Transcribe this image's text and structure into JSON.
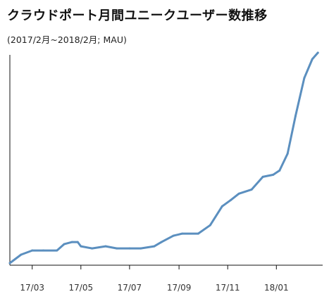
{
  "title": "クラウドポート月間ユニークユーザー数推移",
  "subtitle": "(2017/2月~2018/2月; MAU)",
  "chart_data": {
    "type": "line",
    "title": "クラウドポート月間ユニークユーザー数推移",
    "subtitle": "(2017/2月~2018/2月; MAU)",
    "xlabel": "",
    "ylabel": "",
    "x_axis_type": "date",
    "xlim": [
      "2017-02-01",
      "2018-02-28"
    ],
    "y_axis_labels": "none",
    "ylim": [
      0,
      100
    ],
    "grid": false,
    "legend": "none",
    "color": "#5b8fbf",
    "tick_labels": [
      "17/03",
      "17/05",
      "17/07",
      "17/09",
      "17/11",
      "18/01"
    ],
    "tick_dates": [
      "2017-03-01",
      "2017-05-01",
      "2017-07-01",
      "2017-09-01",
      "2017-11-01",
      "2018-01-01"
    ],
    "x": [
      "2017-02-01",
      "2017-02-15",
      "2017-03-01",
      "2017-03-15",
      "2017-04-01",
      "2017-04-10",
      "2017-04-20",
      "2017-04-27",
      "2017-05-01",
      "2017-05-15",
      "2017-06-01",
      "2017-06-15",
      "2017-07-01",
      "2017-07-15",
      "2017-08-01",
      "2017-08-10",
      "2017-08-25",
      "2017-09-05",
      "2017-09-25",
      "2017-10-10",
      "2017-10-25",
      "2017-11-05",
      "2017-11-15",
      "2017-12-01",
      "2017-12-15",
      "2017-12-28",
      "2018-01-05",
      "2018-01-15",
      "2018-01-25",
      "2018-02-05",
      "2018-02-15",
      "2018-02-22"
    ],
    "values": [
      0,
      4,
      6,
      6,
      6,
      9,
      10,
      10,
      8,
      7,
      8,
      7,
      7,
      7,
      8,
      10,
      13,
      14,
      14,
      18,
      27,
      30,
      33,
      35,
      41,
      42,
      44,
      52,
      70,
      88,
      97,
      100
    ]
  }
}
